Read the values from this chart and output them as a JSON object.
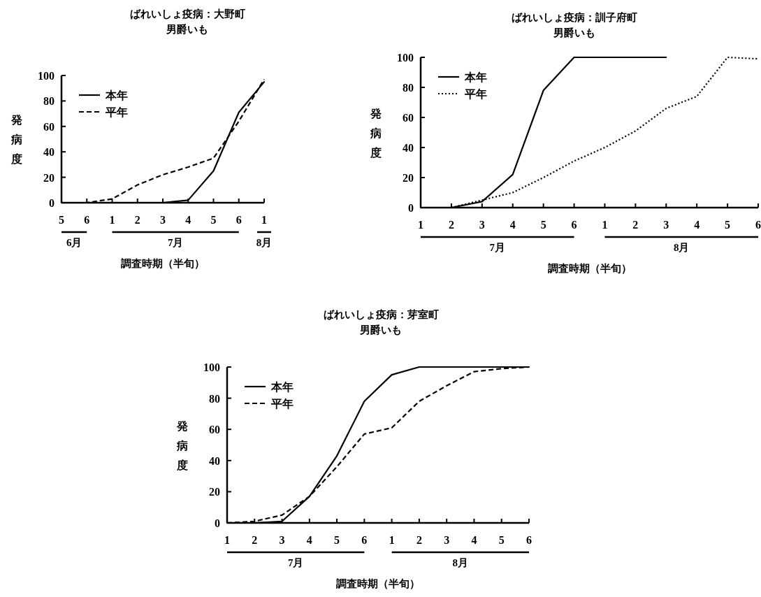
{
  "chart_data": [
    {
      "type": "line",
      "title": "ばれいしょ疫病：大野町",
      "subtitle": "男爵いも",
      "ylabel": "発病度",
      "xlabel": "調査時期（半旬）",
      "categories": [
        "5",
        "6",
        "1",
        "2",
        "3",
        "4",
        "5",
        "6",
        "1"
      ],
      "annotations": [
        "6月",
        "7月",
        "8月"
      ],
      "ylim": [
        0,
        100
      ],
      "yticks": [
        0,
        20,
        40,
        60,
        80,
        100
      ],
      "legend": "top left",
      "grid": false,
      "marker": "none",
      "series": [
        {
          "name": "本年",
          "color": "#000000",
          "line_style": "solid",
          "values": [
            0,
            0,
            0,
            0,
            0,
            2,
            25,
            71,
            95
          ]
        },
        {
          "name": "平年",
          "color": "#000000",
          "line_style": "dashed",
          "values": [
            0,
            0,
            3,
            14,
            22,
            28,
            35,
            64,
            97
          ]
        }
      ]
    },
    {
      "type": "line",
      "title": "ばれいしょ疫病：訓子府町",
      "subtitle": "男爵いも",
      "ylabel": "発病度",
      "xlabel": "調査時期（半旬）",
      "categories": [
        "1",
        "2",
        "3",
        "4",
        "5",
        "6",
        "1",
        "2",
        "3",
        "4",
        "5",
        "6"
      ],
      "annotations": [
        "7月",
        "8月"
      ],
      "ylim": [
        0,
        100
      ],
      "yticks": [
        0,
        20,
        40,
        60,
        80,
        100
      ],
      "legend": "top left",
      "grid": false,
      "marker": "none",
      "series": [
        {
          "name": "本年",
          "color": "#000000",
          "line_style": "solid",
          "values": [
            0,
            0,
            4,
            22,
            78,
            100,
            100,
            100,
            100,
            null,
            null,
            null
          ]
        },
        {
          "name": "平年",
          "color": "#000000",
          "line_style": "dotted",
          "values": [
            null,
            0,
            5,
            10,
            20,
            31,
            40,
            51,
            66,
            74,
            100,
            99
          ]
        }
      ]
    },
    {
      "type": "line",
      "title": "ばれいしょ疫病：芽室町",
      "subtitle": "男爵いも",
      "ylabel": "発病度",
      "xlabel": "調査時期（半旬）",
      "categories": [
        "1",
        "2",
        "3",
        "4",
        "5",
        "6",
        "1",
        "2",
        "3",
        "4",
        "5",
        "6"
      ],
      "annotations": [
        "7月",
        "8月"
      ],
      "ylim": [
        0,
        100
      ],
      "yticks": [
        0,
        20,
        40,
        60,
        80,
        100
      ],
      "legend": "top left",
      "grid": false,
      "marker": "none",
      "series": [
        {
          "name": "本年",
          "color": "#000000",
          "line_style": "solid",
          "values": [
            0,
            0,
            1,
            17,
            43,
            78,
            95,
            100,
            100,
            100,
            100,
            100
          ]
        },
        {
          "name": "平年",
          "color": "#000000",
          "line_style": "dashed",
          "values": [
            0,
            1,
            5,
            17,
            36,
            57,
            61,
            78,
            88,
            97,
            99,
            100
          ]
        }
      ]
    }
  ]
}
